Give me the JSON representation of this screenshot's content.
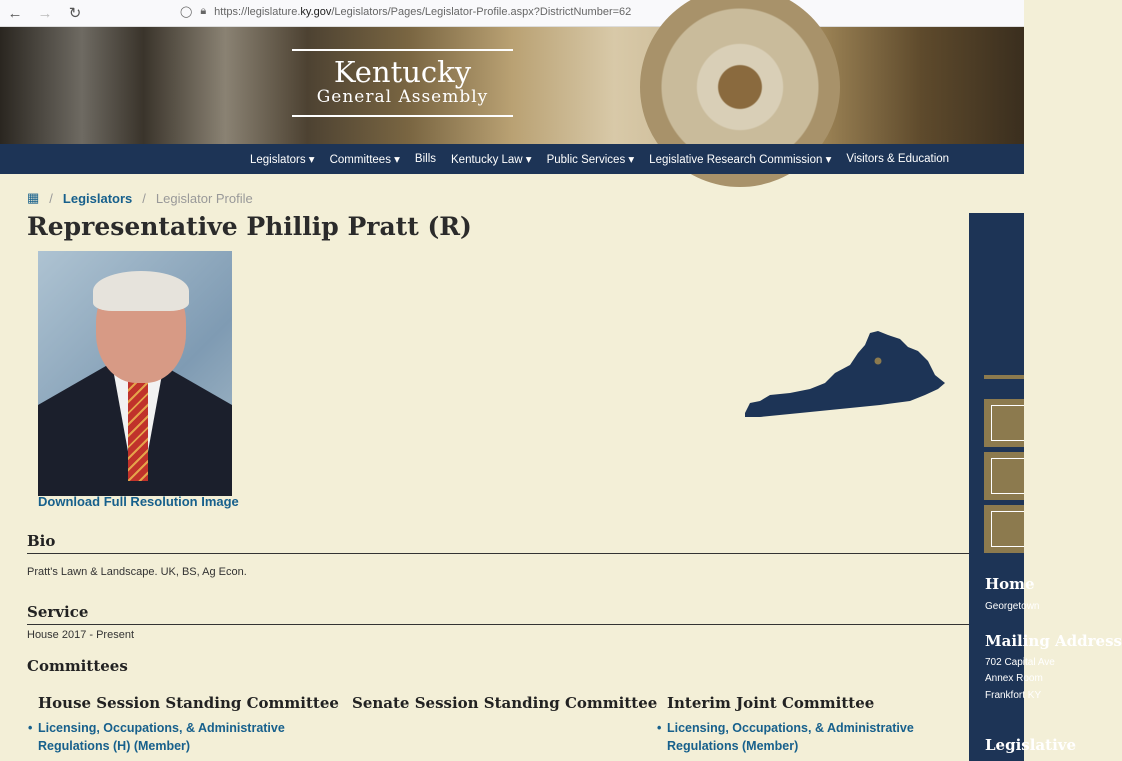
{
  "browser": {
    "url_prefix": "https://legislature.",
    "url_domain": "ky.gov",
    "url_rest": "/Legislators/Pages/Legislator-Profile.aspx?DistrictNumber=62"
  },
  "logo": {
    "line1": "Kentucky",
    "line2": "General Assembly"
  },
  "nav": [
    "Legislators ▾",
    "Committees ▾",
    "Bills",
    "Kentucky Law ▾",
    "Public Services ▾",
    "Legislative Research Commission ▾",
    "Visitors & Education"
  ],
  "breadcrumb": {
    "home_icon": "building-icon",
    "link": "Legislators",
    "current": "Legislator Profile"
  },
  "title": "Representative Phillip Pratt (R)",
  "download_label": "Download Full Resolution Image",
  "bio": {
    "heading": "Bio",
    "text": "Pratt's Lawn & Landscape. UK, BS, Ag Econ."
  },
  "service": {
    "heading": "Service",
    "text": "House 2017 - Present"
  },
  "committees": {
    "heading": "Committees",
    "house": {
      "heading": "House Session Standing Committee",
      "items": [
        "Licensing, Occupations, & Administrative Regulations (H) (Member)"
      ]
    },
    "senate": {
      "heading": "Senate Session Standing Committee"
    },
    "interim": {
      "heading": "Interim Joint Committee",
      "items": [
        "Licensing, Occupations, & Administrative Regulations (Member)"
      ]
    }
  },
  "sidebar": {
    "home_heading": "Home",
    "home_text": "Georgetown",
    "mailing_heading": "Mailing Address",
    "mailing_lines": [
      "702 Capital Ave",
      "Annex Room",
      "Frankfort KY"
    ],
    "leg_heading": "Legislative"
  },
  "colors": {
    "navy": "#1d3456",
    "link": "#17608c",
    "gold": "#8c7a4e",
    "background": "#f3efd7"
  }
}
